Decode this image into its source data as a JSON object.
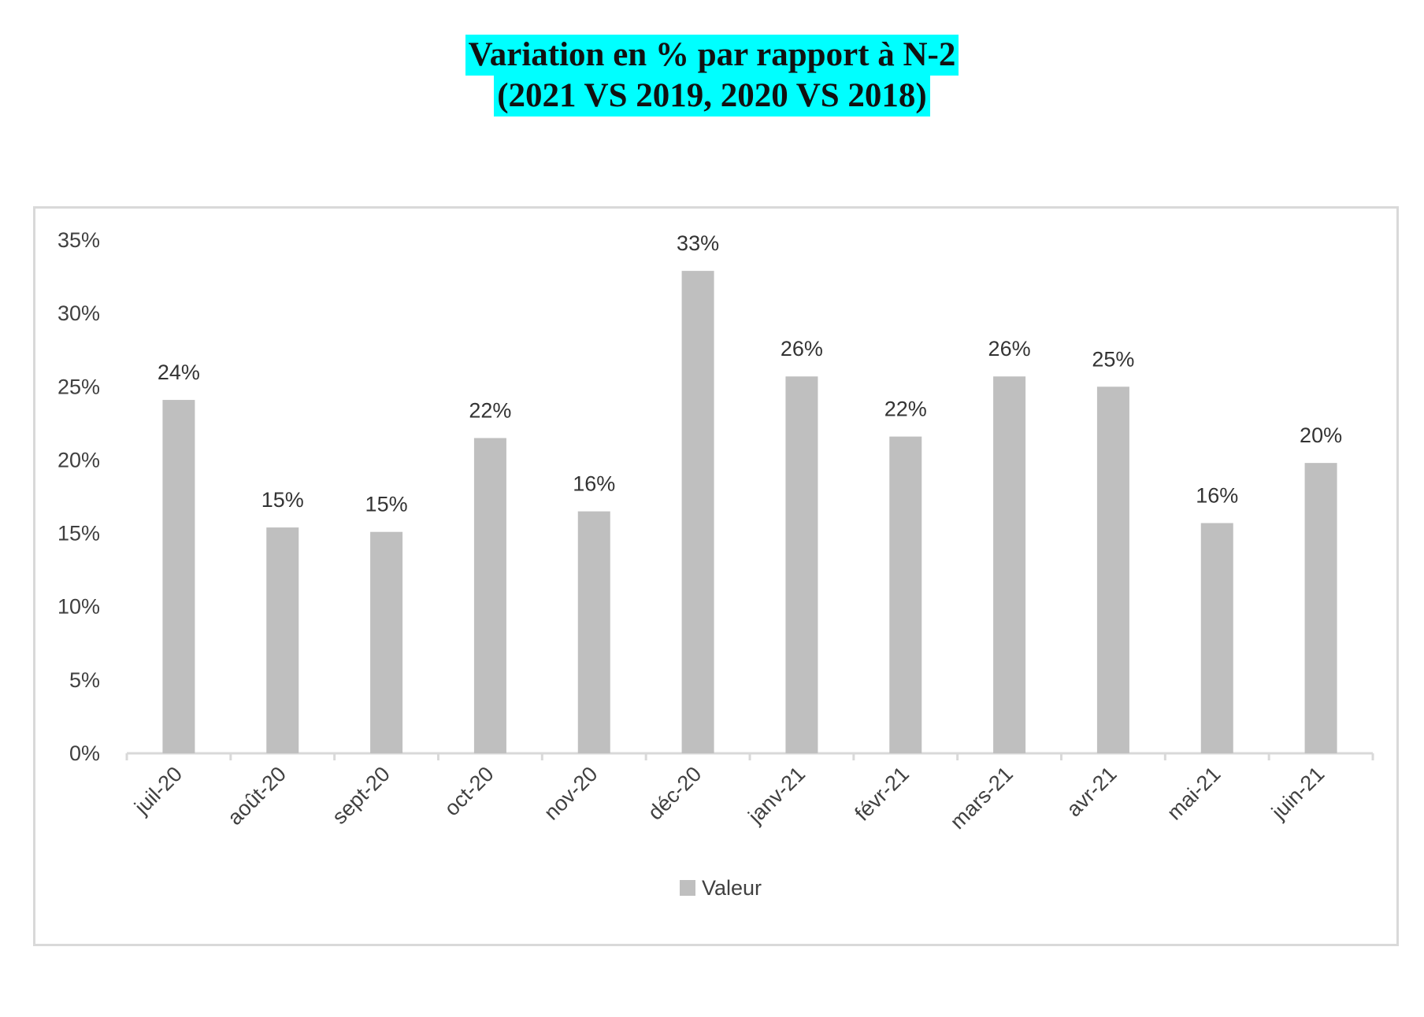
{
  "chart_data": {
    "type": "bar",
    "title": [
      "Variation en % par rapport à N-2",
      "(2021 VS 2019, 2020 VS 2018)"
    ],
    "categories": [
      "juil-20",
      "août-20",
      "sept-20",
      "oct-20",
      "nov-20",
      "déc-20",
      "janv-21",
      "févr-21",
      "mars-21",
      "avr-21",
      "mai-21",
      "juin-21"
    ],
    "series": [
      {
        "name": "Valeur",
        "values": [
          24.1,
          15.4,
          15.1,
          21.5,
          16.5,
          32.9,
          25.7,
          21.6,
          25.7,
          25.0,
          15.7,
          19.8
        ],
        "labels": [
          "24%",
          "15%",
          "15%",
          "22%",
          "16%",
          "33%",
          "26%",
          "22%",
          "26%",
          "25%",
          "16%",
          "20%"
        ],
        "color": "#bfbfbf"
      }
    ],
    "ylim": [
      0,
      35
    ],
    "yticks": [
      0,
      5,
      10,
      15,
      20,
      25,
      30,
      35
    ],
    "ytick_labels": [
      "0%",
      "5%",
      "10%",
      "15%",
      "20%",
      "25%",
      "30%",
      "35%"
    ],
    "xlabel": "",
    "ylabel": "",
    "grid": false,
    "legend": "bottom",
    "title_highlight": "#00ffff"
  }
}
